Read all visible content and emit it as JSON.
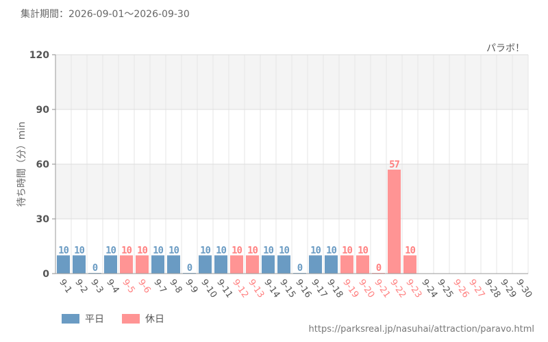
{
  "header": {
    "period": "集計期間：2026-09-01～2026-09-30"
  },
  "chart_data": {
    "type": "bar",
    "annotation": "パラボ！",
    "ylabel": "待ち時間（分）min",
    "ylim": [
      0,
      120
    ],
    "yticks": [
      "0",
      "30",
      "60",
      "90",
      "120"
    ],
    "categories": [
      "9-1",
      "9-2",
      "9-3",
      "9-4",
      "9-5",
      "9-6",
      "9-7",
      "9-8",
      "9-9",
      "9-10",
      "9-11",
      "9-12",
      "9-13",
      "9-14",
      "9-15",
      "9-16",
      "9-17",
      "9-18",
      "9-19",
      "9-20",
      "9-21",
      "9-22",
      "9-23",
      "9-24",
      "9-25",
      "9-26",
      "9-27",
      "9-28",
      "9-29",
      "9-30"
    ],
    "values": [
      10,
      10,
      0,
      10,
      10,
      10,
      10,
      10,
      0,
      10,
      10,
      10,
      10,
      10,
      10,
      0,
      10,
      10,
      10,
      10,
      0,
      57,
      10,
      null,
      null,
      null,
      null,
      null,
      null,
      null
    ],
    "day_type": [
      "平日",
      "平日",
      "平日",
      "平日",
      "休日",
      "休日",
      "平日",
      "平日",
      "平日",
      "平日",
      "平日",
      "休日",
      "休日",
      "平日",
      "平日",
      "平日",
      "平日",
      "平日",
      "休日",
      "休日",
      "休日",
      "休日",
      "休日",
      "平日",
      "平日",
      "休日",
      "休日",
      "平日",
      "平日",
      "平日"
    ],
    "legend": [
      {
        "label": "平日",
        "color": "#6a9bc3"
      },
      {
        "label": "休日",
        "color": "#ff9494"
      }
    ],
    "colors": {
      "weekday_label": "#6a9bc3",
      "holiday_label": "#ff8080",
      "axis_label": "#555555"
    },
    "grid": true
  },
  "footer": {
    "source": "https://parksreal.jp/nasuhai/attraction/paravo.html"
  }
}
